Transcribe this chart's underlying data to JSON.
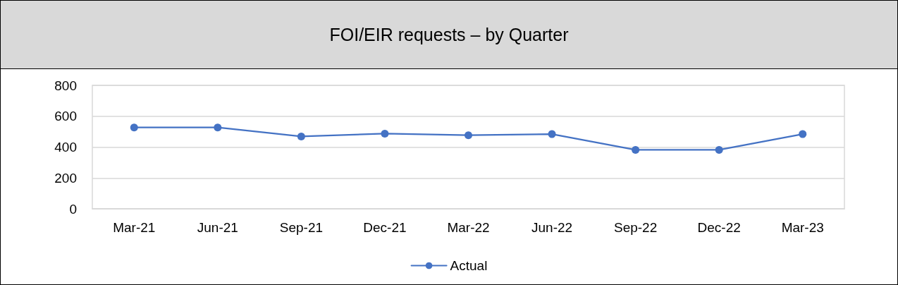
{
  "chart_data": {
    "type": "line",
    "title": "FOI/EIR requests – by Quarter",
    "categories": [
      "Mar-21",
      "Jun-21",
      "Sep-21",
      "Dec-21",
      "Mar-22",
      "Jun-22",
      "Sep-22",
      "Dec-22",
      "Mar-23"
    ],
    "series": [
      {
        "name": "Actual",
        "color": "#4472c4",
        "values": [
          527,
          527,
          469,
          487,
          477,
          484,
          382,
          382,
          484
        ]
      }
    ],
    "ylim": [
      0,
      800
    ],
    "yticks": [
      0,
      200,
      400,
      600,
      800
    ],
    "grid": "y",
    "legend": "bottom",
    "marker": "circle",
    "line_style": "solid"
  }
}
